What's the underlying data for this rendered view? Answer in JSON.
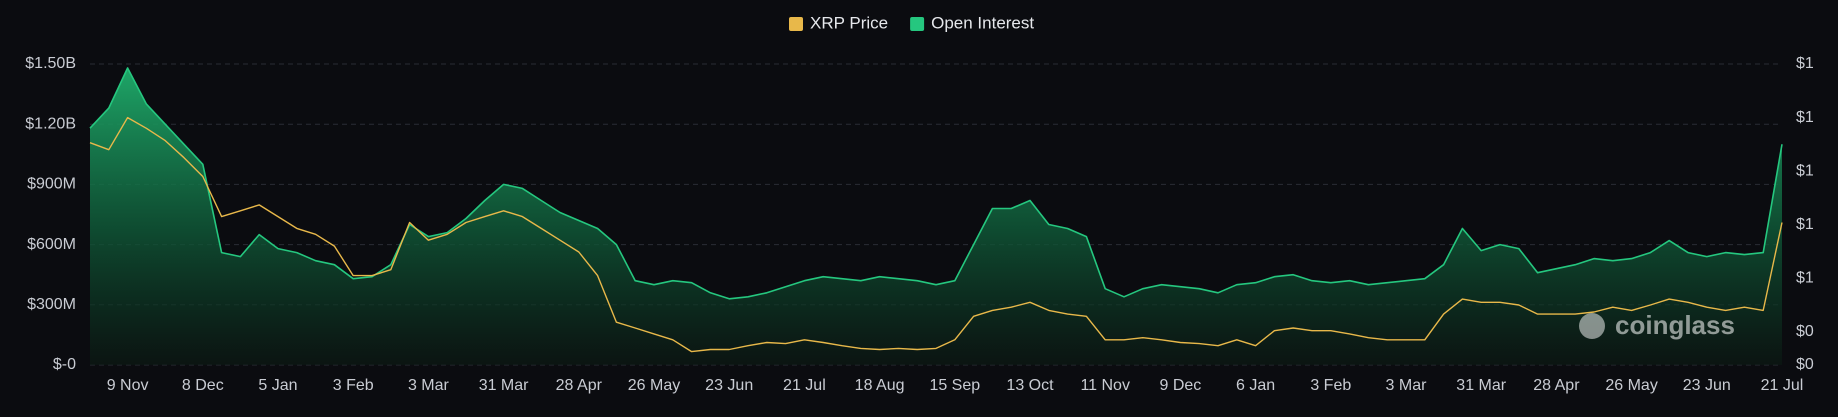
{
  "chart_data": {
    "type": "line",
    "categories": [
      null,
      null,
      "9 Nov",
      null,
      null,
      null,
      "8 Dec",
      null,
      null,
      null,
      "5 Jan",
      null,
      null,
      null,
      "3 Feb",
      null,
      null,
      null,
      "3 Mar",
      null,
      null,
      null,
      "31 Mar",
      null,
      null,
      null,
      "28 Apr",
      null,
      null,
      null,
      "26 May",
      null,
      null,
      null,
      "23 Jun",
      null,
      null,
      null,
      "21 Jul",
      null,
      null,
      null,
      "18 Aug",
      null,
      null,
      null,
      "15 Sep",
      null,
      null,
      null,
      "13 Oct",
      null,
      null,
      null,
      "11 Nov",
      null,
      null,
      null,
      "9 Dec",
      null,
      null,
      null,
      "6 Jan",
      null,
      null,
      null,
      "3 Feb",
      null,
      null,
      null,
      "3 Mar",
      null,
      null,
      null,
      "31 Mar",
      null,
      null,
      null,
      "28 Apr",
      null,
      null,
      null,
      "26 May",
      null,
      null,
      null,
      "23 Jun",
      null,
      null,
      null,
      "21 Jul"
    ],
    "series": [
      {
        "name": "Open Interest",
        "color": "#25c77f",
        "area": true,
        "axis": "y",
        "values": [
          1180000000,
          1280000000,
          1480000000,
          1300000000,
          1200000000,
          1100000000,
          1000000000,
          560000000,
          540000000,
          650000000,
          580000000,
          560000000,
          520000000,
          500000000,
          430000000,
          440000000,
          500000000,
          700000000,
          640000000,
          660000000,
          730000000,
          820000000,
          900000000,
          880000000,
          820000000,
          760000000,
          720000000,
          680000000,
          600000000,
          420000000,
          400000000,
          420000000,
          410000000,
          360000000,
          330000000,
          340000000,
          360000000,
          390000000,
          420000000,
          440000000,
          430000000,
          420000000,
          440000000,
          430000000,
          420000000,
          400000000,
          420000000,
          600000000,
          780000000,
          780000000,
          820000000,
          700000000,
          680000000,
          640000000,
          380000000,
          340000000,
          380000000,
          400000000,
          390000000,
          380000000,
          360000000,
          400000000,
          410000000,
          440000000,
          450000000,
          420000000,
          410000000,
          420000000,
          400000000,
          410000000,
          420000000,
          430000000,
          500000000,
          680000000,
          570000000,
          600000000,
          580000000,
          460000000,
          480000000,
          500000000,
          530000000,
          520000000,
          530000000,
          560000000,
          620000000,
          560000000,
          540000000,
          560000000,
          550000000,
          560000000,
          1100000000
        ]
      },
      {
        "name": "XRP Price",
        "color": "#e8b84a",
        "area": false,
        "axis": "y2",
        "values": [
          0.753,
          0.74,
          0.8,
          0.78,
          0.757,
          0.725,
          0.69,
          0.615,
          0.626,
          0.637,
          0.615,
          0.593,
          0.582,
          0.56,
          0.505,
          0.505,
          0.516,
          0.604,
          0.571,
          0.582,
          0.604,
          0.615,
          0.626,
          0.615,
          0.593,
          0.571,
          0.549,
          0.505,
          0.418,
          0.407,
          0.396,
          0.385,
          0.363,
          0.367,
          0.367,
          0.374,
          0.38,
          0.378,
          0.385,
          0.38,
          0.374,
          0.369,
          0.367,
          0.369,
          0.367,
          0.369,
          0.385,
          0.429,
          0.44,
          0.446,
          0.455,
          0.44,
          0.433,
          0.429,
          0.385,
          0.385,
          0.389,
          0.385,
          0.38,
          0.378,
          0.374,
          0.385,
          0.374,
          0.402,
          0.407,
          0.402,
          0.402,
          0.396,
          0.389,
          0.385,
          0.385,
          0.385,
          0.433,
          0.461,
          0.455,
          0.455,
          0.45,
          0.433,
          0.433,
          0.433,
          0.437,
          0.446,
          0.44,
          0.45,
          0.461,
          0.455,
          0.446,
          0.44,
          0.446,
          0.44,
          0.604
        ]
      }
    ],
    "legend_order": [
      1,
      0
    ],
    "ylim": [
      0,
      1500000000
    ],
    "yticks": [
      {
        "value": 0,
        "label": "$-0"
      },
      {
        "value": 300000000,
        "label": "$300M"
      },
      {
        "value": 600000000,
        "label": "$600M"
      },
      {
        "value": 900000000,
        "label": "$900M"
      },
      {
        "value": 1200000000,
        "label": "$1.20B"
      },
      {
        "value": 1500000000,
        "label": "$1.50B"
      }
    ],
    "y2lim": [
      0.338,
      0.9
    ],
    "y2ticks": [
      {
        "value": 0.338,
        "label": "$0"
      },
      {
        "value": 0.4,
        "label": "$0"
      },
      {
        "value": 0.5,
        "label": "$1"
      },
      {
        "value": 0.6,
        "label": "$1"
      },
      {
        "value": 0.7,
        "label": "$1"
      },
      {
        "value": 0.8,
        "label": "$1"
      },
      {
        "value": 0.9,
        "label": "$1"
      }
    ],
    "grid": true,
    "watermark": "coinglass"
  }
}
